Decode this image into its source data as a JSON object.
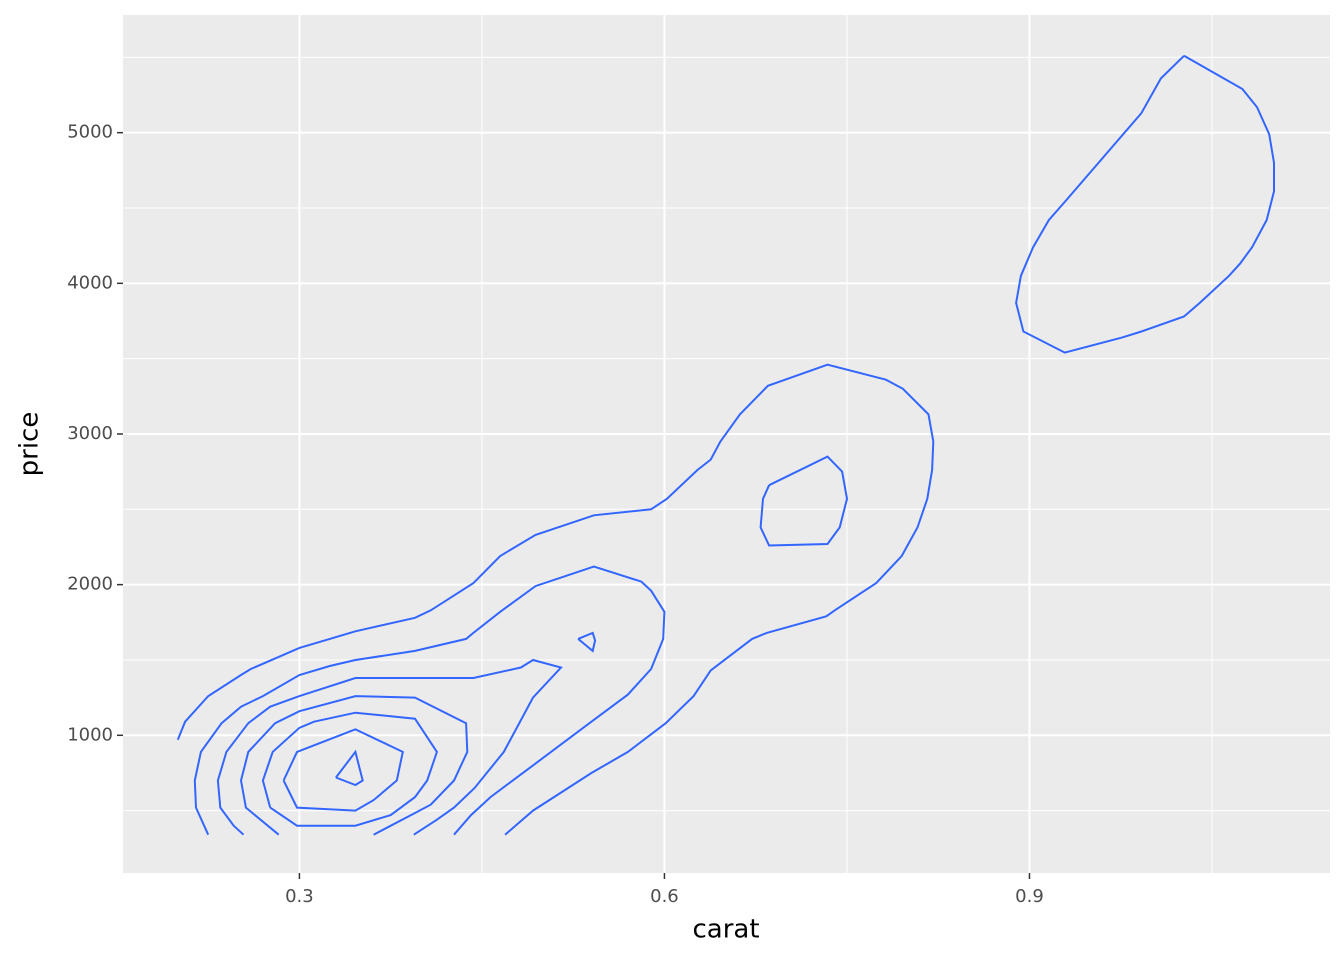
{
  "chart_data": {
    "type": "contour",
    "x_label": "carat",
    "y_label": "price",
    "color": "#3366ff",
    "grid": true,
    "xlim": [
      0.155,
      1.147
    ],
    "ylim": [
      86,
      5781
    ],
    "xticks": [
      0.3,
      0.6,
      0.9
    ],
    "yticks": [
      1000,
      2000,
      3000,
      4000,
      5000
    ],
    "series": [
      {
        "x": [
          0.2,
          0.206,
          0.225,
          0.252,
          0.26,
          0.3,
          0.325,
          0.346,
          0.395,
          0.408,
          0.443,
          0.465,
          0.494,
          0.542,
          0.589,
          0.602,
          0.627,
          0.638,
          0.646,
          0.662,
          0.685,
          0.734,
          0.782,
          0.796,
          0.817,
          0.821,
          0.82,
          0.816,
          0.808,
          0.795,
          0.774,
          0.74,
          0.733,
          0.684,
          0.672,
          0.638,
          0.624,
          0.601,
          0.57,
          0.54,
          0.492,
          0.469
        ],
        "y": [
          970,
          1090,
          1260,
          1400,
          1440,
          1580,
          1640,
          1690,
          1780,
          1830,
          2010,
          2190,
          2330,
          2460,
          2500,
          2570,
          2760,
          2830,
          2950,
          3130,
          3320,
          3460,
          3360,
          3300,
          3130,
          2950,
          2760,
          2570,
          2380,
          2190,
          2010,
          1830,
          1790,
          1680,
          1640,
          1430,
          1260,
          1080,
          890,
          750,
          500,
          340
        ]
      },
      {
        "x": [
          0.225,
          0.215,
          0.214,
          0.219,
          0.236,
          0.252,
          0.27,
          0.3,
          0.325,
          0.346,
          0.395,
          0.437,
          0.443,
          0.465,
          0.494,
          0.542,
          0.581,
          0.589,
          0.6,
          0.599,
          0.589,
          0.57,
          0.54,
          0.492,
          0.457,
          0.441,
          0.427
        ],
        "y": [
          340,
          520,
          700,
          890,
          1080,
          1190,
          1260,
          1400,
          1460,
          1500,
          1560,
          1640,
          1680,
          1820,
          1990,
          2120,
          2020,
          1960,
          1820,
          1640,
          1440,
          1270,
          1090,
          800,
          590,
          470,
          340
        ]
      },
      {
        "x": [
          0.254,
          0.246,
          0.235,
          0.233,
          0.24,
          0.258,
          0.276,
          0.3,
          0.346,
          0.395,
          0.443,
          0.482,
          0.492,
          0.515,
          0.492,
          0.468,
          0.444,
          0.427,
          0.413,
          0.394
        ],
        "y": [
          340,
          400,
          520,
          700,
          890,
          1080,
          1190,
          1260,
          1380,
          1380,
          1380,
          1450,
          1500,
          1450,
          1250,
          890,
          650,
          520,
          440,
          340
        ]
      },
      {
        "x": [
          0.283,
          0.256,
          0.252,
          0.258,
          0.28,
          0.3,
          0.346,
          0.395,
          0.437,
          0.438,
          0.427,
          0.408,
          0.394,
          0.361
        ],
        "y": [
          340,
          520,
          700,
          890,
          1080,
          1160,
          1260,
          1250,
          1080,
          890,
          700,
          540,
          480,
          340
        ]
      },
      {
        "x": [
          0.276,
          0.27,
          0.278,
          0.3,
          0.312,
          0.346,
          0.395,
          0.413,
          0.405,
          0.395,
          0.375,
          0.346,
          0.298,
          0.276
        ],
        "y": [
          520,
          700,
          890,
          1050,
          1090,
          1150,
          1110,
          890,
          700,
          590,
          470,
          400,
          400,
          520
        ]
      },
      {
        "x": [
          0.287,
          0.298,
          0.346,
          0.385,
          0.38,
          0.361,
          0.346,
          0.298,
          0.287
        ],
        "y": [
          700,
          890,
          1040,
          890,
          700,
          570,
          500,
          520,
          700
        ]
      },
      {
        "x": [
          0.33,
          0.346,
          0.352,
          0.346,
          0.33
        ],
        "y": [
          720,
          890,
          700,
          670,
          720
        ]
      },
      {
        "x": [
          0.529,
          0.541,
          0.543,
          0.541,
          0.529
        ],
        "y": [
          1640,
          1680,
          1630,
          1560,
          1640
        ]
      },
      {
        "x": [
          0.686,
          0.734,
          0.746,
          0.75,
          0.744,
          0.734,
          0.686,
          0.679,
          0.681,
          0.686
        ],
        "y": [
          2660,
          2850,
          2750,
          2570,
          2380,
          2270,
          2260,
          2380,
          2570,
          2660
        ]
      },
      {
        "x": [
          1.027,
          1.051,
          1.075,
          1.087,
          1.097,
          1.101,
          1.101,
          1.095,
          1.083,
          1.073,
          1.064,
          1.04,
          1.027,
          0.992,
          0.976,
          0.929,
          0.895,
          0.889,
          0.893,
          0.903,
          0.916,
          0.93,
          0.992,
          1.008,
          1.027
        ],
        "y": [
          5510,
          5400,
          5290,
          5170,
          4990,
          4800,
          4610,
          4420,
          4240,
          4130,
          4050,
          3870,
          3780,
          3680,
          3640,
          3540,
          3680,
          3870,
          4050,
          4240,
          4420,
          4550,
          5130,
          5360,
          5510
        ]
      }
    ]
  }
}
